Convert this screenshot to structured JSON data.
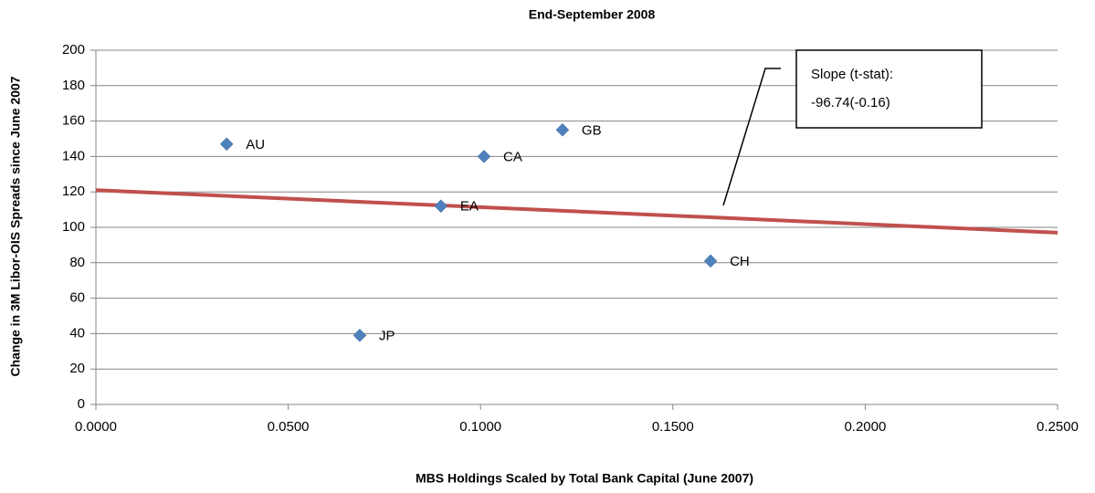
{
  "chart_data": {
    "type": "scatter",
    "title": "End-September 2008",
    "x_label": "MBS Holdings Scaled by Total Bank Capital (June 2007)",
    "y_label": "Change in 3M Libor-OIS Spreads since June 2007",
    "point_labels": [
      "AU",
      "JP",
      "EA",
      "CA",
      "GB",
      "CH"
    ],
    "x": [
      0.034,
      0.0686,
      0.0897,
      0.1009,
      0.1213,
      0.1598
    ],
    "values": [
      147,
      39,
      112,
      140,
      155,
      81
    ],
    "color": "#4f81bd",
    "trendline": {
      "color": "#c0504d",
      "x": [
        0,
        0.25
      ],
      "values": [
        121,
        97
      ]
    },
    "annotation": [
      "Slope (t-stat):",
      "-96.74(-0.16)"
    ],
    "xlim": [
      0,
      0.25
    ],
    "xticks": [
      {
        "value": 0,
        "label": "0.0000"
      },
      {
        "value": 0.05,
        "label": "0.0500"
      },
      {
        "value": 0.1,
        "label": "0.1000"
      },
      {
        "value": 0.15,
        "label": "0.1500"
      },
      {
        "value": 0.2,
        "label": "0.2000"
      },
      {
        "value": 0.25,
        "label": "0.2500"
      }
    ],
    "ylim": [
      0,
      200
    ],
    "yticks": [
      0,
      20,
      40,
      60,
      80,
      100,
      120,
      140,
      160,
      180,
      200
    ],
    "grid": true
  }
}
